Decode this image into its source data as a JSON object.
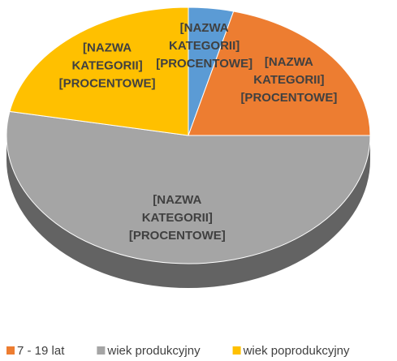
{
  "chart_data": {
    "type": "pie3d",
    "categories": [
      null,
      "7 - 19 lat",
      "wiek produkcyjny",
      "wiek poprodukcyjny"
    ],
    "values": [
      4,
      21,
      53,
      22
    ],
    "colors": [
      "#5b9bd5",
      "#ed7d31",
      "#a5a5a5",
      "#ffc000"
    ],
    "data_labels": [
      [
        "[NAZWA",
        "KATEGORII]",
        "[PROCENTOWE]"
      ],
      [
        "[NAZWA",
        "KATEGORII]",
        "[PROCENTOWE]"
      ],
      [
        "[NAZWA",
        "KATEGORII]",
        "[PROCENTOWE]"
      ],
      [
        "[NAZWA",
        "KATEGORII]",
        "[PROCENTOWE]"
      ]
    ],
    "legend": "bottom"
  }
}
